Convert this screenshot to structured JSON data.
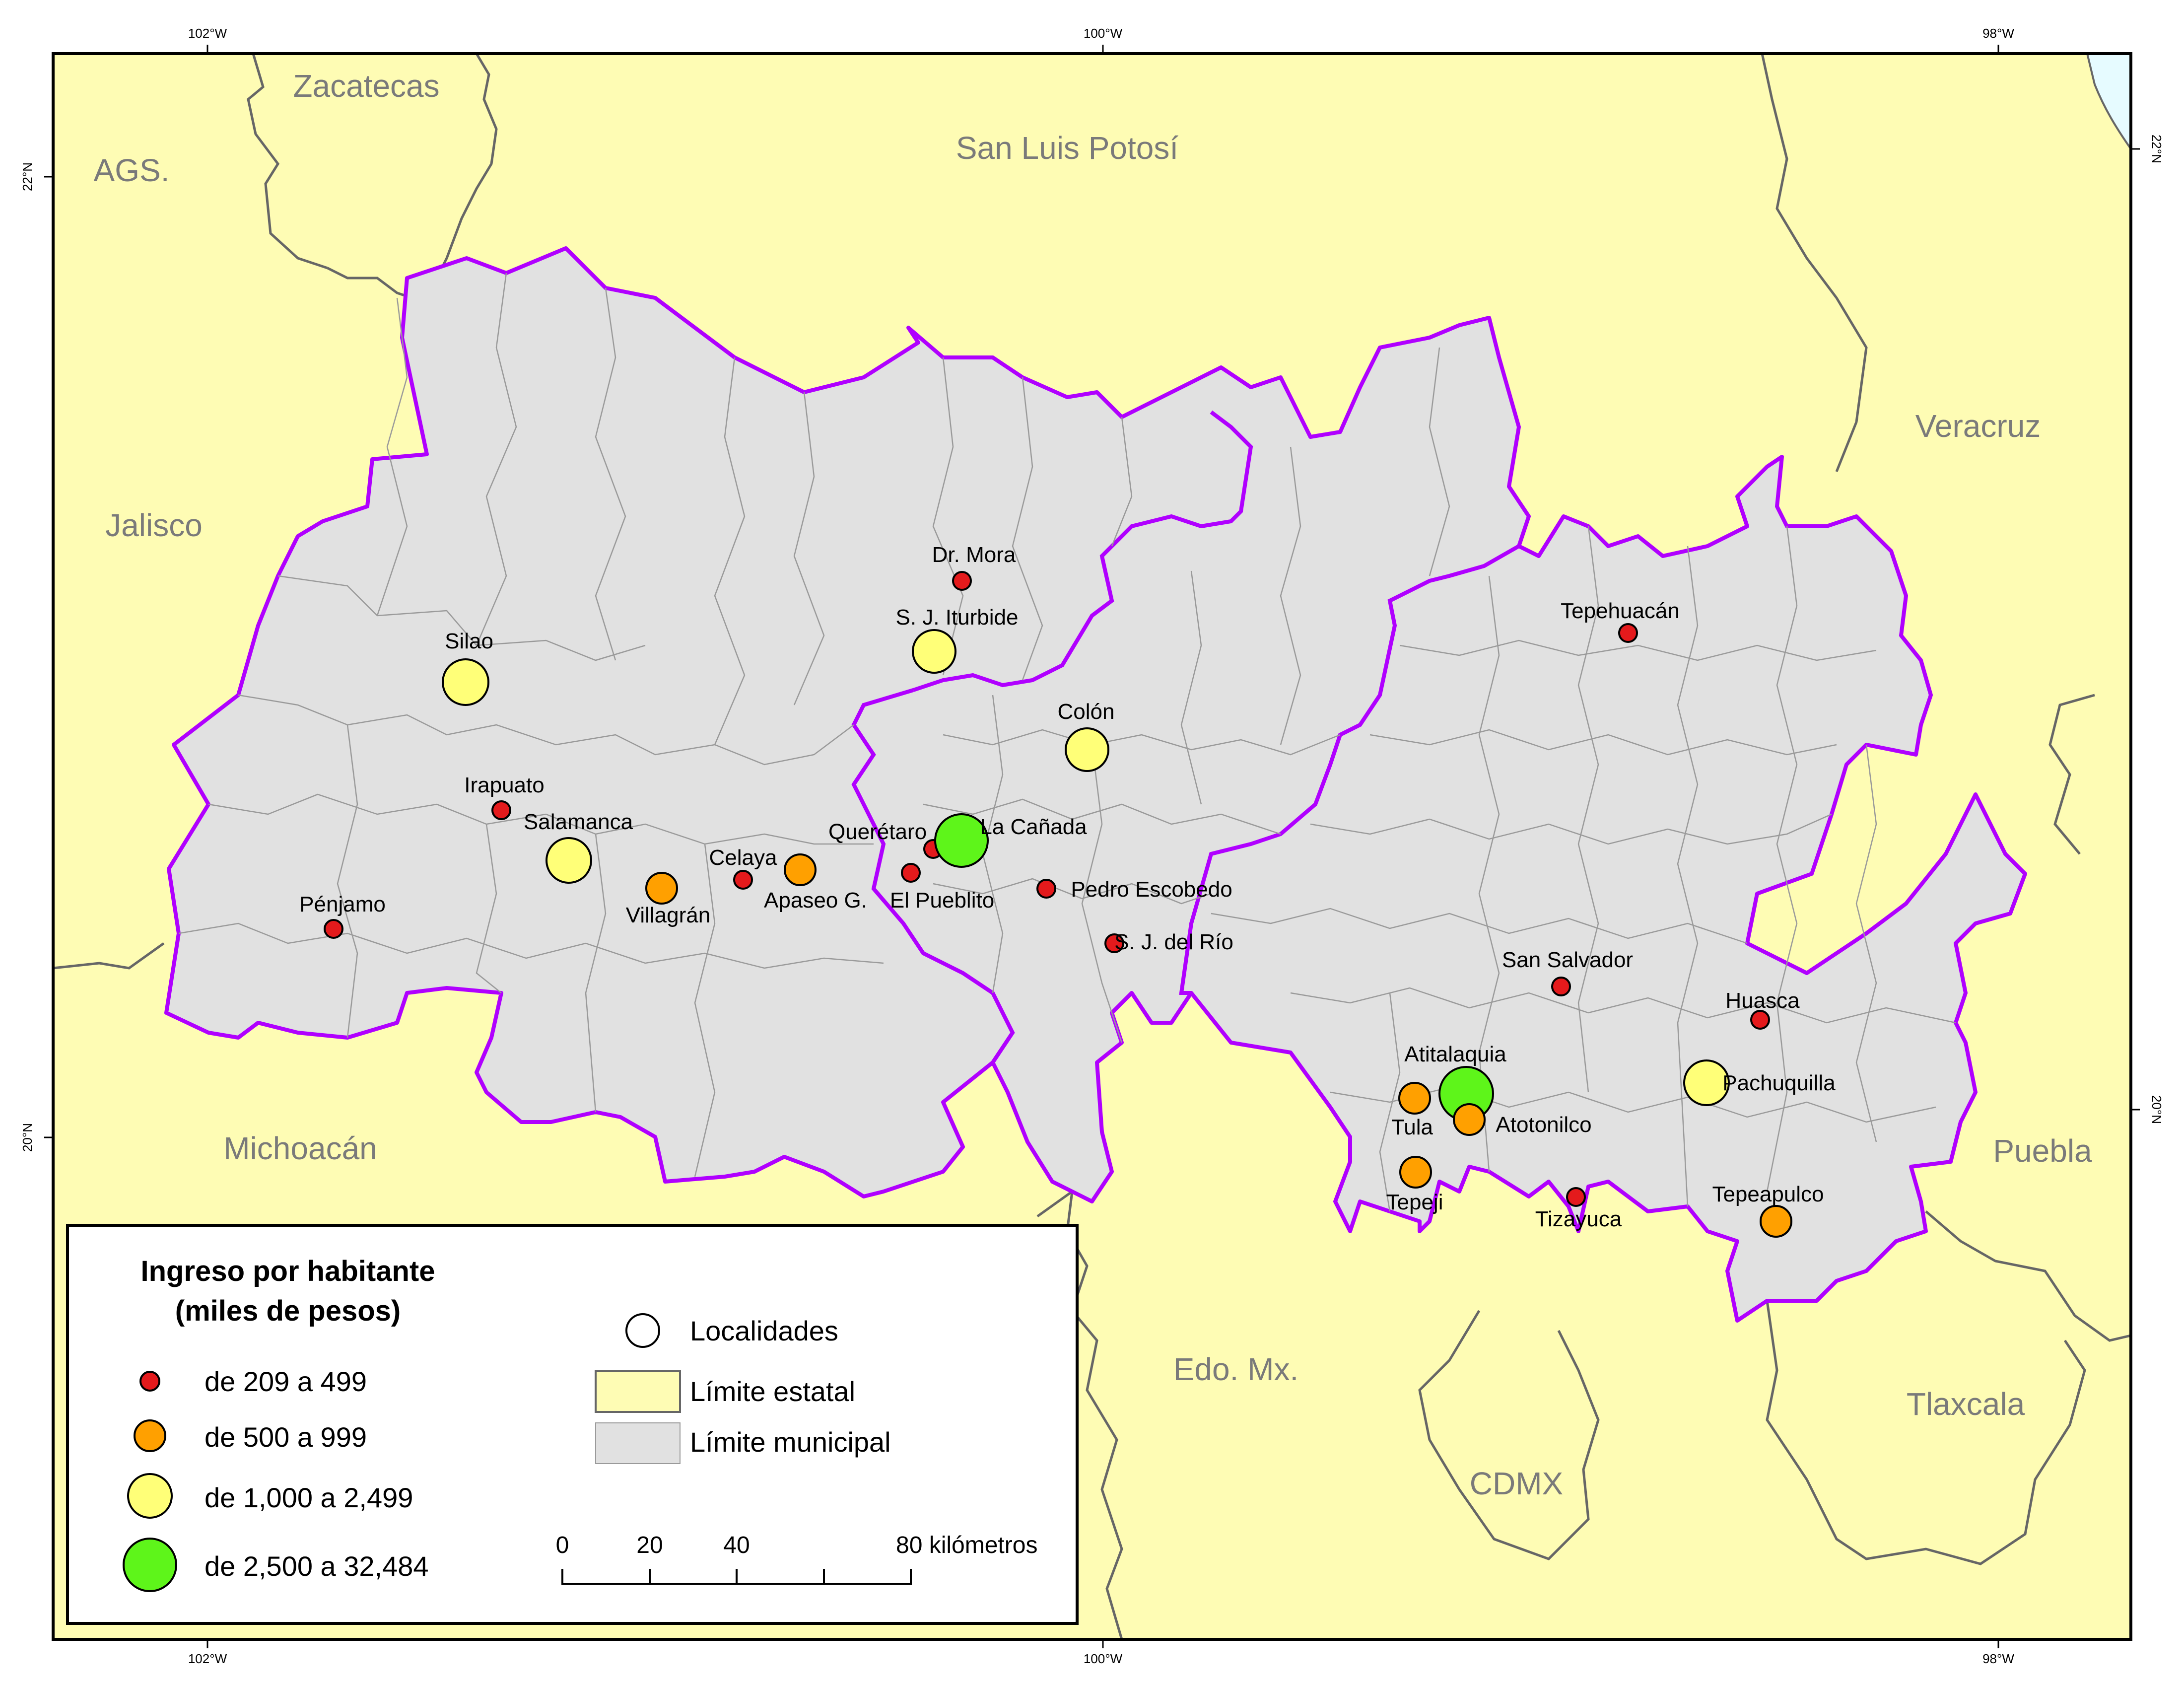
{
  "colors": {
    "background": "#fefcb4",
    "municipal_fill": "#e1e1e1",
    "state_line": "#666666",
    "study_border": "#b000ff",
    "municipal_line": "#9a9a9a",
    "water": "#e6fbff",
    "class_red": "#e41a1c",
    "class_orange": "#ffa000",
    "class_yellow": "#ffff78",
    "class_green": "#5ef51a"
  },
  "graticule": {
    "top": [
      "102°W",
      "100°W",
      "98°W"
    ],
    "bottom": [
      "102°W",
      "100°W",
      "98°W"
    ],
    "left": [
      "22°N",
      "20°N"
    ],
    "right": [
      "22°N",
      "20°N"
    ]
  },
  "regions": [
    {
      "name": "Zacatecas"
    },
    {
      "name": "AGS."
    },
    {
      "name": "San Luis Potosí"
    },
    {
      "name": "Jalisco"
    },
    {
      "name": "Veracruz"
    },
    {
      "name": "Michoacán"
    },
    {
      "name": "Puebla"
    },
    {
      "name": "Edo. Mx."
    },
    {
      "name": "Tlaxcala"
    },
    {
      "name": "CDMX"
    }
  ],
  "localities": [
    {
      "name": "Dr. Mora",
      "class": "red"
    },
    {
      "name": "S. J. Iturbide",
      "class": "yellow"
    },
    {
      "name": "Tepehuacán",
      "class": "red"
    },
    {
      "name": "Silao",
      "class": "yellow"
    },
    {
      "name": "Colón",
      "class": "yellow"
    },
    {
      "name": "Irapuato",
      "class": "red"
    },
    {
      "name": "Salamanca",
      "class": "yellow"
    },
    {
      "name": "Querétaro",
      "class": "red"
    },
    {
      "name": "La Cañada",
      "class": "green"
    },
    {
      "name": "Celaya",
      "class": "red"
    },
    {
      "name": "Apaseo G.",
      "class": "orange"
    },
    {
      "name": "El Pueblito",
      "class": "red"
    },
    {
      "name": "Villagrán",
      "class": "orange"
    },
    {
      "name": "Pedro Escobedo",
      "class": "red"
    },
    {
      "name": "Pénjamo",
      "class": "red"
    },
    {
      "name": "S. J. del Río",
      "class": "red"
    },
    {
      "name": "San Salvador",
      "class": "red"
    },
    {
      "name": "Huasca",
      "class": "red"
    },
    {
      "name": "Atitalaquia",
      "class": "green"
    },
    {
      "name": "Tula",
      "class": "orange"
    },
    {
      "name": "Atotonilco",
      "class": "orange"
    },
    {
      "name": "Pachuquilla",
      "class": "yellow"
    },
    {
      "name": "Tepeji",
      "class": "orange"
    },
    {
      "name": "Tizayuca",
      "class": "red"
    },
    {
      "name": "Tepeapulco",
      "class": "orange"
    }
  ],
  "legend": {
    "title_line1": "Ingreso por habitante",
    "title_line2": "(miles de pesos)",
    "classes": [
      {
        "label": "de 209 a 499",
        "class": "red"
      },
      {
        "label": "de 500 a 999",
        "class": "orange"
      },
      {
        "label": "de 1,000 a 2,499",
        "class": "yellow"
      },
      {
        "label": "de 2,500 a 32,484",
        "class": "green"
      }
    ],
    "localities_label": "Localidades",
    "state_limit_label": "Límite estatal",
    "municipal_limit_label": "Límite municipal"
  },
  "scale": {
    "ticks": [
      "0",
      "20",
      "40"
    ],
    "end_label": "80 kilómetros"
  }
}
